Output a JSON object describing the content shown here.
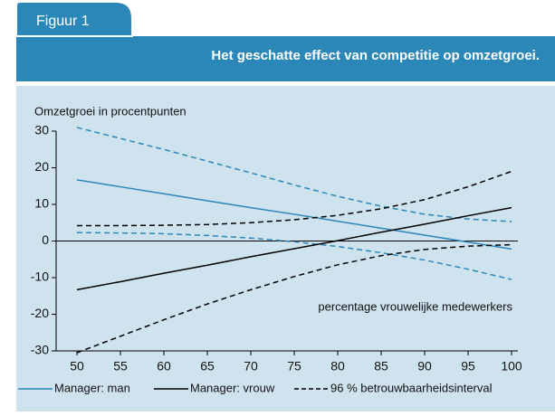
{
  "figure_label": "Figuur 1",
  "chart_data": {
    "type": "line",
    "title": "Het geschatte effect van competitie op omzetgroei.",
    "y_label": "Omzetgroei in procentpunten",
    "annotation": "percentage vrouwelijke medewerkers",
    "x": [
      50,
      55,
      60,
      65,
      70,
      75,
      80,
      85,
      90,
      95,
      100
    ],
    "xlim": [
      50,
      100
    ],
    "xticks": [
      50,
      55,
      60,
      65,
      70,
      75,
      80,
      85,
      90,
      95,
      100
    ],
    "ylim": [
      -30,
      30
    ],
    "yticks": [
      -30,
      -20,
      -10,
      0,
      10,
      20,
      30
    ],
    "series": [
      {
        "name": "Manager: man",
        "color": "#2a87b8",
        "values": [
          16.7,
          14.8,
          12.9,
          11.0,
          9.1,
          7.3,
          5.4,
          3.5,
          1.6,
          -0.3,
          -2.2
        ],
        "ci_upper": [
          31,
          28,
          25,
          21.8,
          18.6,
          15.3,
          12.2,
          9.5,
          7.3,
          6,
          5.3
        ],
        "ci_lower": [
          2.3,
          2.2,
          2,
          1.5,
          0.8,
          -0.2,
          -1.5,
          -3.2,
          -5.2,
          -7.7,
          -10.5
        ]
      },
      {
        "name": "Manager: vrouw",
        "color": "#000000",
        "values": [
          -13.3,
          -11.1,
          -8.8,
          -6.6,
          -4.3,
          -2.1,
          0.1,
          2.4,
          4.6,
          6.9,
          9.1
        ],
        "ci_upper": [
          4.2,
          4.2,
          4.3,
          4.5,
          5,
          5.8,
          7,
          8.8,
          11.3,
          14.8,
          19
        ],
        "ci_lower": [
          -30.5,
          -26,
          -21.5,
          -17.2,
          -13.3,
          -9.7,
          -6.5,
          -4,
          -2.3,
          -1.4,
          -1
        ]
      }
    ],
    "ci_name": "96 % betrouwbaarheidsinterval",
    "ci_color": "#000000"
  }
}
